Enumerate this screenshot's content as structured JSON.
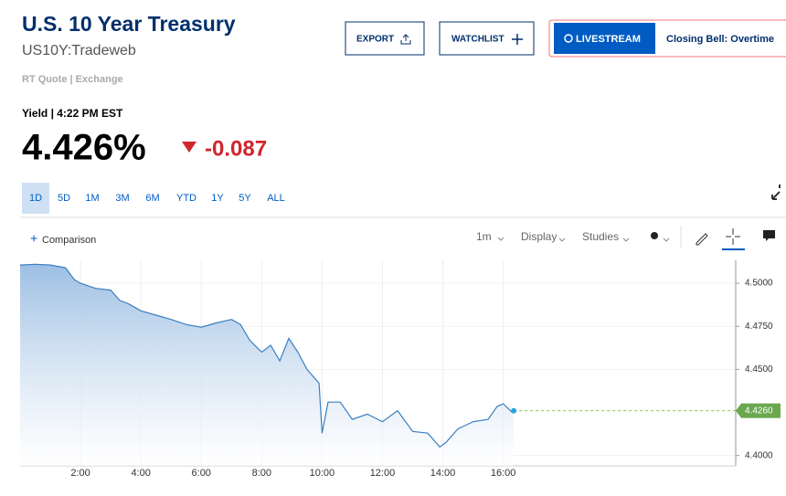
{
  "header": {
    "title": "U.S. 10 Year Treasury",
    "symbol": "US10Y:Tradeweb",
    "source": "RT Quote | Exchange"
  },
  "buttons": {
    "export": "EXPORT",
    "watchlist": "WATCHLIST",
    "livestream": "LIVESTREAM",
    "closing_bell": "Closing Bell: Overtime"
  },
  "quote": {
    "label": "Yield | 4:22 PM EST",
    "price": "4.426%",
    "change": "-0.087"
  },
  "ranges": [
    "1D",
    "5D",
    "1M",
    "3M",
    "6M",
    "YTD",
    "1Y",
    "5Y",
    "ALL"
  ],
  "toolbar": {
    "comparison": "Comparison",
    "interval": "1m",
    "display": "Display",
    "studies": "Studies"
  },
  "chart": {
    "type": "line",
    "color": "#3a7fc1",
    "x": [
      0,
      0.5,
      1,
      1.5,
      1.8,
      2,
      2.5,
      3,
      3.3,
      3.6,
      4,
      4.5,
      5,
      5.5,
      6,
      6.5,
      7,
      7.3,
      7.6,
      8,
      8.3,
      8.6,
      8.9,
      9.2,
      9.5,
      9.9,
      10,
      10.2,
      10.6,
      11,
      11.5,
      12,
      12.5,
      13,
      13.5,
      13.9,
      14.1,
      14.5,
      15,
      15.5,
      15.8,
      16,
      16.3,
      16.35
    ],
    "values": [
      4.5106,
      4.511,
      4.5106,
      4.509,
      4.502,
      4.5,
      4.497,
      4.496,
      4.49,
      4.488,
      4.484,
      4.4815,
      4.479,
      4.476,
      4.4745,
      4.477,
      4.479,
      4.476,
      4.467,
      4.46,
      4.464,
      4.455,
      4.468,
      4.46,
      4.45,
      4.442,
      4.413,
      4.431,
      4.431,
      4.421,
      4.424,
      4.4196,
      4.426,
      4.414,
      4.413,
      4.405,
      4.4075,
      4.4155,
      4.4196,
      4.421,
      4.4285,
      4.43,
      4.425,
      4.426
    ],
    "xlim": [
      0,
      23.7
    ],
    "ylim": [
      4.394,
      4.5133
    ],
    "xticks": [
      {
        "value": 2,
        "label": "2:00"
      },
      {
        "value": 4,
        "label": "4:00"
      },
      {
        "value": 6,
        "label": "6:00"
      },
      {
        "value": 8,
        "label": "8:00"
      },
      {
        "value": 10,
        "label": "10:00"
      },
      {
        "value": 12,
        "label": "12:00"
      },
      {
        "value": 14,
        "label": "14:00"
      },
      {
        "value": 16,
        "label": "16:00"
      }
    ],
    "yticks": [
      {
        "value": 4.4,
        "label": "4.4000"
      },
      {
        "value": 4.45,
        "label": "4.4500"
      },
      {
        "value": 4.475,
        "label": "4.4750"
      },
      {
        "value": 4.5,
        "label": "4.5000"
      }
    ],
    "last_label": "4.4260",
    "grid": true
  }
}
